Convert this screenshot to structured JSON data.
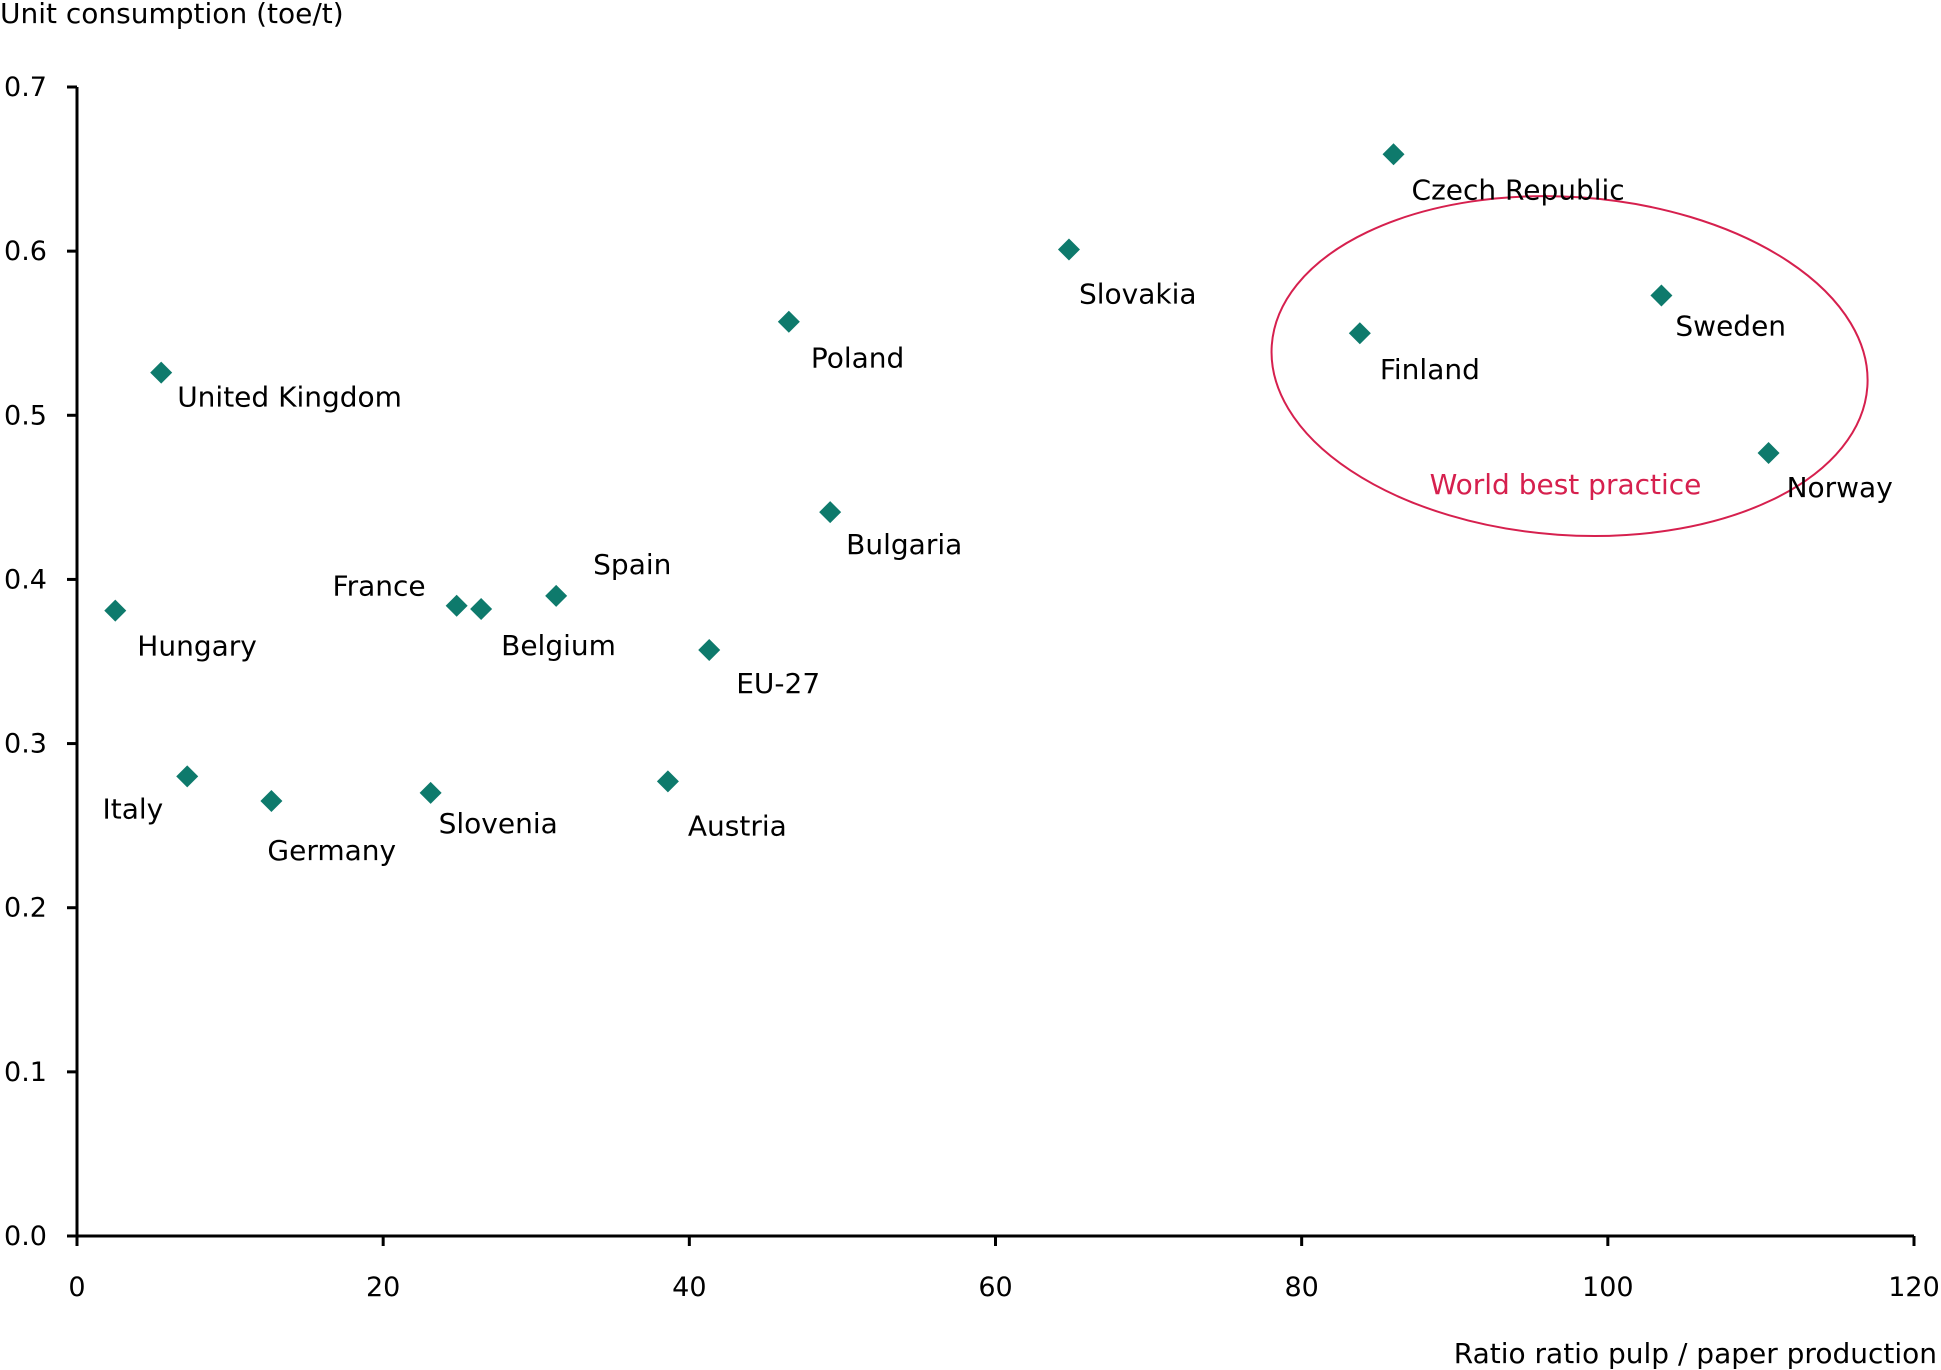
{
  "chart_data": {
    "type": "scatter",
    "title": "",
    "xlabel": "Ratio ratio pulp / paper production",
    "ylabel": "Unit consumption (toe/t)",
    "xlim": [
      0,
      120
    ],
    "ylim": [
      0,
      0.7
    ],
    "x_ticks": [
      "0",
      "20",
      "40",
      "60",
      "80",
      "100",
      "120"
    ],
    "y_ticks": [
      "0.0",
      "0.1",
      "0.2",
      "0.3",
      "0.4",
      "0.5",
      "0.6",
      "0.7"
    ],
    "grid": false,
    "legend": "none",
    "marker": "diamond",
    "marker_color": "#0e7a6c",
    "points": [
      {
        "label": "Czech Republic",
        "x": 86.0,
        "y": 0.659
      },
      {
        "label": "Slovakia",
        "x": 64.8,
        "y": 0.601
      },
      {
        "label": "Sweden",
        "x": 103.5,
        "y": 0.573
      },
      {
        "label": "Poland",
        "x": 46.5,
        "y": 0.557
      },
      {
        "label": "Finland",
        "x": 83.8,
        "y": 0.55
      },
      {
        "label": "United Kingdom",
        "x": 5.5,
        "y": 0.526
      },
      {
        "label": "Norway",
        "x": 110.5,
        "y": 0.477
      },
      {
        "label": "Bulgaria",
        "x": 49.2,
        "y": 0.441
      },
      {
        "label": "Spain",
        "x": 31.3,
        "y": 0.39
      },
      {
        "label": "France",
        "x": 24.8,
        "y": 0.384
      },
      {
        "label": "Belgium",
        "x": 26.4,
        "y": 0.382
      },
      {
        "label": "Hungary",
        "x": 2.5,
        "y": 0.381
      },
      {
        "label": "EU-27",
        "x": 41.3,
        "y": 0.357
      },
      {
        "label": "Italy",
        "x": 7.2,
        "y": 0.28
      },
      {
        "label": "Austria",
        "x": 38.6,
        "y": 0.277
      },
      {
        "label": "Slovenia",
        "x": 23.1,
        "y": 0.27
      },
      {
        "label": "Germany",
        "x": 12.7,
        "y": 0.265
      }
    ],
    "annotation": {
      "text": "World best practice",
      "color": "#d6204e",
      "ellipse_center": [
        97.5,
        0.53
      ],
      "ellipse_radius": [
        19.5,
        0.103
      ]
    }
  }
}
